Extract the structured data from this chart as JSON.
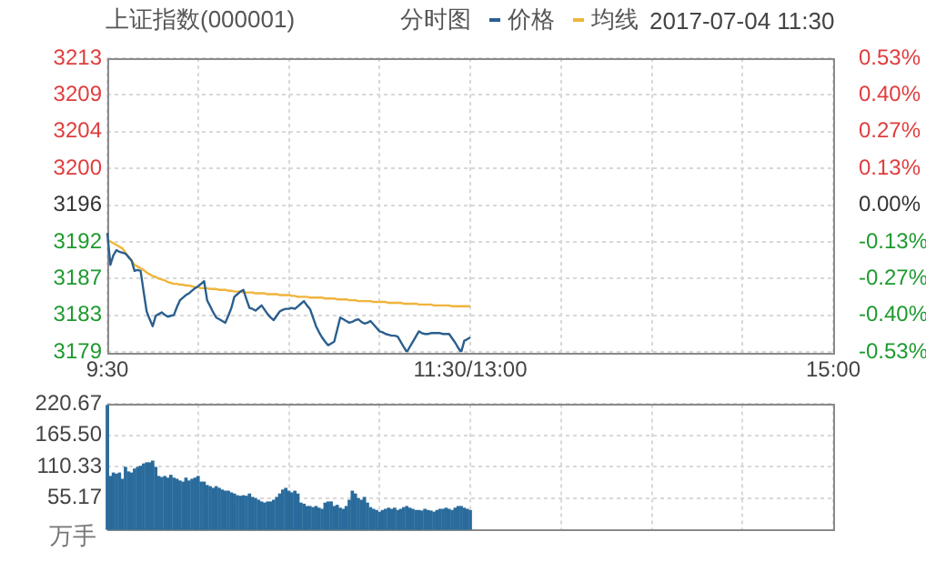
{
  "chart_data": [
    {
      "type": "line",
      "title": "上证指数(000001)",
      "annotations": [
        "分时图",
        "2017-07-04 11:30"
      ],
      "legend": "top",
      "categories": [
        "9:30",
        null,
        null,
        null,
        null,
        null,
        null,
        null,
        null,
        null,
        null,
        null,
        null,
        null,
        null,
        null,
        null,
        null,
        null,
        null,
        null,
        null,
        null,
        null,
        null,
        null,
        null,
        null,
        null,
        null,
        null,
        null,
        null,
        null,
        null,
        null,
        null,
        null,
        null,
        null,
        null,
        null,
        null,
        null,
        null,
        null,
        null,
        null,
        null,
        null,
        null,
        null,
        null,
        null,
        null,
        null,
        null,
        null,
        null,
        null,
        null,
        null,
        null,
        null,
        null,
        null,
        null,
        null,
        null,
        null,
        null,
        null,
        null,
        null,
        null,
        null,
        null,
        null,
        null,
        null,
        null,
        null,
        null,
        null,
        null,
        null,
        null,
        null,
        null,
        null,
        null,
        null,
        null,
        null,
        null,
        null,
        null,
        null,
        null,
        null,
        null,
        null,
        null,
        null,
        null,
        null,
        null,
        null,
        null,
        null,
        null,
        null,
        null,
        null,
        null,
        null,
        null,
        null,
        null,
        null,
        "11:30/13:00",
        null,
        null,
        null,
        null,
        null,
        null,
        null,
        null,
        null,
        null,
        null,
        null,
        null,
        null,
        null,
        null,
        null,
        null,
        null,
        null,
        null,
        null,
        null,
        null,
        null,
        null,
        null,
        null,
        null,
        null,
        null,
        null,
        null,
        null,
        null,
        null,
        null,
        null,
        null,
        null,
        null,
        null,
        null,
        null,
        null,
        null,
        null,
        null,
        null,
        null,
        null,
        null,
        null,
        null,
        null,
        null,
        null,
        null,
        null,
        null,
        null,
        null,
        null,
        null,
        null,
        null,
        null,
        null,
        null,
        null,
        null,
        null,
        null,
        null,
        null,
        null,
        null,
        null,
        null,
        null,
        null,
        null,
        null,
        null,
        null,
        null,
        null,
        null,
        null,
        null,
        null,
        null,
        null,
        null,
        null,
        null,
        null,
        null,
        null,
        null,
        null,
        null,
        null,
        null,
        null,
        null,
        null,
        null,
        null,
        null,
        null,
        null,
        null,
        null,
        null,
        null,
        null,
        null,
        null,
        "15:00"
      ],
      "series": [
        {
          "name": "价格",
          "color": "#2b5f8e",
          "values": [
            3192.8,
            3189.1,
            3190.2,
            3190.8,
            3190.6,
            3190.5,
            3190.4,
            3190.0,
            3189.6,
            3188.4,
            3188.5,
            3188.4,
            3186.0,
            3183.7,
            3182.8,
            3182.0,
            3183.2,
            3183.4,
            3183.6,
            3183.3,
            3183.1,
            3183.2,
            3183.3,
            3184.2,
            3185.0,
            3185.3,
            3185.6,
            3185.8,
            3186.1,
            3186.4,
            3186.6,
            3186.9,
            3187.2,
            3185.0,
            3184.3,
            3183.6,
            3183.0,
            3182.8,
            3182.6,
            3182.4,
            3183.2,
            3184.1,
            3185.4,
            3185.7,
            3186.0,
            3186.2,
            3185.1,
            3184.1,
            3184.0,
            3183.8,
            3184.1,
            3184.4,
            3183.9,
            3183.4,
            3183.0,
            3182.7,
            3183.2,
            3183.7,
            3183.9,
            3184.0,
            3184.0,
            3184.1,
            3184.0,
            3184.3,
            3184.6,
            3184.9,
            3184.4,
            3184.0,
            3183.0,
            3182.0,
            3181.3,
            3180.7,
            3180.2,
            3179.8,
            3180.0,
            3180.2,
            3181.6,
            3183.0,
            3182.8,
            3182.6,
            3182.4,
            3182.5,
            3182.7,
            3182.8,
            3182.5,
            3182.3,
            3182.4,
            3182.6,
            3182.2,
            3181.8,
            3181.4,
            3181.3,
            3181.1,
            3181.0,
            3180.9,
            3180.9,
            3180.8,
            3180.2,
            3179.6,
            3179.0,
            3179.6,
            3180.2,
            3180.8,
            3181.4,
            3181.2,
            3181.1,
            3181.1,
            3181.2,
            3181.2,
            3181.2,
            3181.2,
            3181.1,
            3181.1,
            3181.1,
            3180.6,
            3180.1,
            3179.5,
            3179.0,
            3180.3,
            3180.5,
            3180.7,
            null,
            null,
            null,
            null,
            null,
            null,
            null,
            null,
            null,
            null,
            null,
            null,
            null,
            null,
            null,
            null,
            null,
            null,
            null,
            null,
            null,
            null,
            null,
            null,
            null,
            null,
            null,
            null,
            null,
            null,
            null,
            null,
            null,
            null,
            null,
            null,
            null,
            null,
            null,
            null,
            null,
            null,
            null,
            null,
            null,
            null,
            null,
            null,
            null,
            null,
            null,
            null,
            null,
            null,
            null,
            null,
            null,
            null,
            null,
            null,
            null,
            null,
            null,
            null,
            null,
            null,
            null,
            null,
            null,
            null,
            null,
            null,
            null,
            null,
            null,
            null,
            null,
            null,
            null,
            null,
            null,
            null,
            null,
            null,
            null,
            null,
            null,
            null,
            null,
            null,
            null,
            null,
            null,
            null,
            null,
            null,
            null,
            null,
            null,
            null,
            null,
            null,
            null,
            null,
            null,
            null,
            null,
            null,
            null,
            null,
            null,
            null,
            null,
            null,
            null,
            null,
            null,
            null,
            null,
            null
          ]
        },
        {
          "name": "均线",
          "color": "#f0b43c",
          "values": [
            3192,
            3191.8,
            3191.6,
            3191.4,
            3191.2,
            3191,
            3190.5,
            3190,
            3189.6,
            3189.1,
            3188.9,
            3188.7,
            3188.5,
            3188.2,
            3188,
            3187.8,
            3187.7,
            3187.5,
            3187.4,
            3187.3,
            3187.1,
            3187,
            3186.9,
            3186.9,
            3186.8,
            3186.8,
            3186.7,
            3186.7,
            3186.6,
            3186.5,
            3186.5,
            3186.4,
            3186.4,
            3186.4,
            3186.3,
            3186.3,
            3186.3,
            3186.2,
            3186.2,
            3186.2,
            3186.1,
            3186.1,
            3186.0,
            3186.0,
            3186.0,
            3185.9,
            3185.9,
            3185.9,
            3185.9,
            3185.8,
            3185.8,
            3185.8,
            3185.8,
            3185.7,
            3185.7,
            3185.7,
            3185.7,
            3185.6,
            3185.6,
            3185.6,
            3185.6,
            3185.5,
            3185.5,
            3185.4,
            3185.4,
            3185.4,
            3185.4,
            3185.3,
            3185.3,
            3185.3,
            3185.3,
            3185.3,
            3185.2,
            3185.2,
            3185.2,
            3185.2,
            3185.1,
            3185.1,
            3185.1,
            3185.1,
            3185.0,
            3185.0,
            3185.0,
            3184.9,
            3184.9,
            3184.9,
            3184.9,
            3184.9,
            3184.8,
            3184.8,
            3184.8,
            3184.8,
            3184.8,
            3184.7,
            3184.7,
            3184.7,
            3184.7,
            3184.7,
            3184.6,
            3184.6,
            3184.6,
            3184.6,
            3184.6,
            3184.5,
            3184.5,
            3184.5,
            3184.5,
            3184.5,
            3184.4,
            3184.4,
            3184.4,
            3184.4,
            3184.4,
            3184.4,
            3184.3,
            3184.3,
            3184.3,
            3184.3,
            3184.3,
            3184.3,
            3184.3,
            null,
            null,
            null,
            null,
            null,
            null,
            null,
            null,
            null,
            null,
            null,
            null,
            null,
            null,
            null,
            null,
            null,
            null,
            null,
            null,
            null,
            null,
            null,
            null,
            null,
            null,
            null,
            null,
            null,
            null,
            null,
            null,
            null,
            null,
            null,
            null,
            null,
            null,
            null,
            null,
            null,
            null,
            null,
            null,
            null,
            null,
            null,
            null,
            null,
            null,
            null,
            null,
            null,
            null,
            null,
            null,
            null,
            null,
            null,
            null,
            null,
            null,
            null,
            null,
            null,
            null,
            null,
            null,
            null,
            null,
            null,
            null,
            null,
            null,
            null,
            null,
            null,
            null,
            null,
            null,
            null,
            null,
            null,
            null,
            null,
            null,
            null,
            null,
            null,
            null,
            null,
            null,
            null,
            null,
            null,
            null,
            null,
            null,
            null,
            null,
            null,
            null,
            null,
            null,
            null,
            null,
            null,
            null,
            null,
            null,
            null,
            null,
            null,
            null,
            null,
            null,
            null,
            null,
            null,
            null
          ]
        }
      ],
      "ylim": [
        3179,
        3213
      ],
      "yticks": [
        {
          "value": 3179,
          "label": "3179"
        },
        {
          "value": 3183.25,
          "label": "3183"
        },
        {
          "value": 3187.5,
          "label": "3187"
        },
        {
          "value": 3191.75,
          "label": "3192"
        },
        {
          "value": 3196,
          "label": "3196"
        },
        {
          "value": 3200.25,
          "label": "3200"
        },
        {
          "value": 3204.5,
          "label": "3204"
        },
        {
          "value": 3208.75,
          "label": "3209"
        },
        {
          "value": 3213,
          "label": "3213"
        }
      ],
      "y2lim": [
        -0.53,
        0.53
      ],
      "y2ticks": [
        {
          "value": -0.53,
          "label": "-0.53%"
        },
        {
          "value": -0.3975,
          "label": "-0.40%"
        },
        {
          "value": -0.265,
          "label": "-0.27%"
        },
        {
          "value": -0.1325,
          "label": "-0.13%"
        },
        {
          "value": 0,
          "label": "0.00%"
        },
        {
          "value": 0.1325,
          "label": "0.13%"
        },
        {
          "value": 0.265,
          "label": "0.27%"
        },
        {
          "value": 0.3975,
          "label": "0.40%"
        },
        {
          "value": 0.53,
          "label": "0.53%"
        }
      ],
      "grid": true
    },
    {
      "type": "bar",
      "ylabel": "万手",
      "categories": [
        null,
        null,
        null,
        null,
        null,
        null,
        null,
        null,
        null,
        null,
        null,
        null,
        null,
        null,
        null,
        null,
        null,
        null,
        null,
        null,
        null,
        null,
        null,
        null,
        null,
        null,
        null,
        null,
        null,
        null,
        null,
        null,
        null,
        null,
        null,
        null,
        null,
        null,
        null,
        null,
        null,
        null,
        null,
        null,
        null,
        null,
        null,
        null,
        null,
        null,
        null,
        null,
        null,
        null,
        null,
        null,
        null,
        null,
        null,
        null,
        null,
        null,
        null,
        null,
        null,
        null,
        null,
        null,
        null,
        null,
        null,
        null,
        null,
        null,
        null,
        null,
        null,
        null,
        null,
        null,
        null,
        null,
        null,
        null,
        null,
        null,
        null,
        null,
        null,
        null,
        null,
        null,
        null,
        null,
        null,
        null,
        null,
        null,
        null,
        null,
        null,
        null,
        null,
        null,
        null,
        null,
        null,
        null,
        null,
        null,
        null,
        null,
        null,
        null,
        null,
        null,
        null,
        null,
        null,
        null,
        null,
        null,
        null,
        null,
        null,
        null,
        null,
        null,
        null,
        null,
        null,
        null,
        null,
        null,
        null,
        null,
        null,
        null,
        null,
        null,
        null,
        null,
        null,
        null,
        null,
        null,
        null,
        null,
        null,
        null,
        null,
        null,
        null,
        null,
        null,
        null,
        null,
        null,
        null,
        null,
        null,
        null,
        null,
        null,
        null,
        null,
        null,
        null,
        null,
        null,
        null,
        null,
        null,
        null,
        null,
        null,
        null,
        null,
        null,
        null,
        null,
        null,
        null,
        null,
        null,
        null,
        null,
        null,
        null,
        null,
        null,
        null,
        null,
        null,
        null,
        null,
        null,
        null,
        null,
        null,
        null,
        null,
        null,
        null,
        null,
        null,
        null,
        null,
        null,
        null,
        null,
        null,
        null,
        null,
        null,
        null,
        null,
        null,
        null,
        null,
        null,
        null,
        null,
        null,
        null,
        null,
        null,
        null,
        null,
        null,
        null,
        null,
        null,
        null,
        null,
        null,
        null,
        null,
        null,
        null,
        null
      ],
      "series": [
        {
          "color": "#2a6b9c",
          "values": [
            218,
            93,
            99,
            97,
            99,
            88,
            109,
            101,
            99,
            106,
            109,
            111,
            115,
            117,
            117,
            120,
            109,
            93,
            91,
            93,
            90,
            95,
            90,
            88,
            85,
            83,
            90,
            85,
            88,
            90,
            93,
            83,
            83,
            77,
            75,
            72,
            75,
            72,
            69,
            67,
            67,
            64,
            62,
            59,
            58,
            59,
            58,
            62,
            56,
            54,
            51,
            48,
            46,
            48,
            48,
            51,
            56,
            62,
            69,
            72,
            67,
            64,
            67,
            62,
            46,
            44,
            40,
            40,
            38,
            40,
            37,
            35,
            46,
            48,
            48,
            40,
            42,
            37,
            35,
            40,
            51,
            67,
            62,
            54,
            51,
            56,
            46,
            38,
            35,
            33,
            30,
            33,
            35,
            37,
            35,
            37,
            33,
            35,
            38,
            40,
            37,
            35,
            33,
            33,
            32,
            35,
            33,
            32,
            30,
            33,
            35,
            35,
            37,
            35,
            33,
            37,
            40,
            40,
            37,
            35,
            33,
            null,
            null,
            null,
            null,
            null,
            null,
            null,
            null,
            null,
            null,
            null,
            null,
            null,
            null,
            null,
            null,
            null,
            null,
            null,
            null,
            null,
            null,
            null,
            null,
            null,
            null,
            null,
            null,
            null,
            null,
            null,
            null,
            null,
            null,
            null,
            null,
            null,
            null,
            null,
            null,
            null,
            null,
            null,
            null,
            null,
            null,
            null,
            null,
            null,
            null,
            null,
            null,
            null,
            null,
            null,
            null,
            null,
            null,
            null,
            null,
            null,
            null,
            null,
            null,
            null,
            null,
            null,
            null,
            null,
            null,
            null,
            null,
            null,
            null,
            null,
            null,
            null,
            null,
            null,
            null,
            null,
            null,
            null,
            null,
            null,
            null,
            null,
            null,
            null,
            null,
            null,
            null,
            null,
            null,
            null,
            null,
            null,
            null,
            null,
            null,
            null,
            null,
            null,
            null,
            null,
            null,
            null,
            null,
            null,
            null,
            null,
            null,
            null,
            null,
            null,
            null,
            null,
            null,
            null,
            null
          ]
        }
      ],
      "ylim": [
        0,
        220.67
      ],
      "yticks": [
        55.17,
        110.33,
        {
          "value": 165.5,
          "label": "165.50"
        },
        220.67
      ],
      "tick_labels": "y",
      "grid": true
    }
  ]
}
